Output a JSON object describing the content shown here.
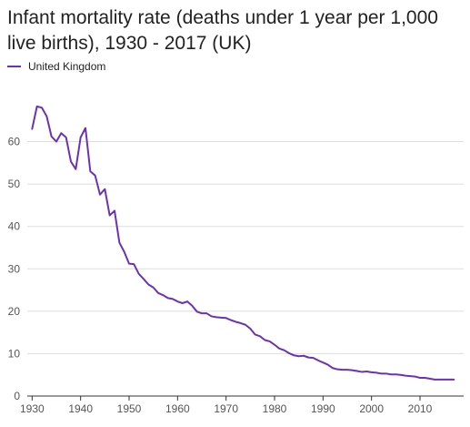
{
  "chart_data": {
    "type": "line",
    "title": "Infant mortality rate (deaths under 1 year per 1,000 live births), 1930 - 2017 (UK)",
    "xlabel": "",
    "ylabel": "",
    "xlim": [
      1929,
      2019
    ],
    "ylim": [
      0,
      73
    ],
    "x_ticks": [
      "1930",
      "1940",
      "1950",
      "1960",
      "1970",
      "1980",
      "1990",
      "2000",
      "2010"
    ],
    "y_ticks": [
      "0",
      "10",
      "20",
      "30",
      "40",
      "50",
      "60"
    ],
    "grid": "horizontal",
    "legend_position": "top-left",
    "accent_color": "#6d32b3",
    "series": [
      {
        "name": "United Kingdom",
        "x": [
          1930,
          1931,
          1932,
          1933,
          1934,
          1935,
          1936,
          1937,
          1938,
          1939,
          1940,
          1941,
          1942,
          1943,
          1944,
          1945,
          1946,
          1947,
          1948,
          1949,
          1950,
          1951,
          1952,
          1953,
          1954,
          1955,
          1956,
          1957,
          1958,
          1959,
          1960,
          1961,
          1962,
          1963,
          1964,
          1965,
          1966,
          1967,
          1968,
          1969,
          1970,
          1971,
          1972,
          1973,
          1974,
          1975,
          1976,
          1977,
          1978,
          1979,
          1980,
          1981,
          1982,
          1983,
          1984,
          1985,
          1986,
          1987,
          1988,
          1989,
          1990,
          1991,
          1992,
          1993,
          1994,
          1995,
          1996,
          1997,
          1998,
          1999,
          2000,
          2001,
          2002,
          2003,
          2004,
          2005,
          2006,
          2007,
          2008,
          2009,
          2010,
          2011,
          2012,
          2013,
          2014,
          2015,
          2016,
          2017
        ],
        "y": [
          63.0,
          68.3,
          68.0,
          66.0,
          61.2,
          60.0,
          62.0,
          61.0,
          55.3,
          53.5,
          61.0,
          63.2,
          53.0,
          52.0,
          47.5,
          48.8,
          42.6,
          43.7,
          36.2,
          34.0,
          31.2,
          31.1,
          28.8,
          27.6,
          26.3,
          25.6,
          24.3,
          23.8,
          23.1,
          22.9,
          22.3,
          21.9,
          22.3,
          21.3,
          19.9,
          19.5,
          19.5,
          18.8,
          18.6,
          18.5,
          18.4,
          17.9,
          17.5,
          17.2,
          16.8,
          15.9,
          14.5,
          14.1,
          13.2,
          12.9,
          12.1,
          11.2,
          10.8,
          10.1,
          9.6,
          9.4,
          9.5,
          9.1,
          9.0,
          8.4,
          7.9,
          7.4,
          6.6,
          6.3,
          6.2,
          6.2,
          6.1,
          5.9,
          5.7,
          5.8,
          5.6,
          5.5,
          5.3,
          5.3,
          5.1,
          5.1,
          5.0,
          4.8,
          4.7,
          4.6,
          4.3,
          4.3,
          4.1,
          3.9,
          3.9,
          3.9,
          3.9,
          3.9
        ]
      }
    ]
  }
}
